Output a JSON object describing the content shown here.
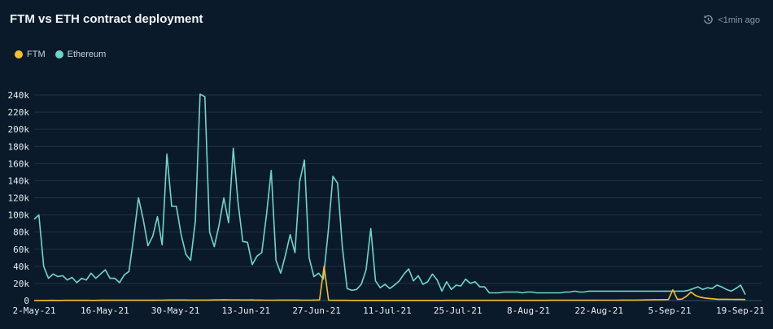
{
  "header": {
    "title": "FTM vs ETH contract deployment",
    "updated": "<1min ago",
    "refresh_icon": "refresh-clock-icon"
  },
  "colors": {
    "background": "#0b1a2a",
    "grid": "#1f3344",
    "ftm": "#f2c12e",
    "ethereum": "#6fd6c9"
  },
  "chart_data": {
    "type": "line",
    "title": "FTM vs ETH contract deployment",
    "legend_position": "top-left",
    "grid": true,
    "ylim": [
      0,
      240000
    ],
    "y_ticks": [
      "0",
      "20k",
      "40k",
      "60k",
      "80k",
      "100k",
      "120k",
      "140k",
      "160k",
      "180k",
      "200k",
      "220k",
      "240k"
    ],
    "x_range": [
      "2021-05-02",
      "2021-09-20"
    ],
    "x_ticks": [
      "2-May-21",
      "16-May-21",
      "30-May-21",
      "13-Jun-21",
      "27-Jun-21",
      "11-Jul-21",
      "25-Jul-21",
      "8-Aug-21",
      "22-Aug-21",
      "5-Sep-21",
      "19-Sep-21"
    ],
    "series": [
      {
        "name": "FTM",
        "color": "#f2c12e",
        "values": [
          100,
          100,
          200,
          200,
          300,
          200,
          200,
          300,
          300,
          300,
          300,
          300,
          300,
          200,
          300,
          400,
          400,
          400,
          400,
          400,
          400,
          500,
          400,
          400,
          400,
          400,
          400,
          500,
          500,
          600,
          700,
          700,
          700,
          700,
          600,
          600,
          600,
          600,
          600,
          700,
          800,
          800,
          900,
          800,
          800,
          800,
          700,
          700,
          800,
          600,
          600,
          500,
          500,
          500,
          600,
          600,
          600,
          600,
          600,
          500,
          500,
          500,
          600,
          800,
          40000,
          500,
          300,
          300,
          300,
          300,
          200,
          200,
          200,
          200,
          200,
          200,
          200,
          200,
          200,
          200,
          200,
          200,
          200,
          200,
          200,
          200,
          200,
          200,
          200,
          200,
          200,
          300,
          300,
          300,
          300,
          300,
          300,
          300,
          300,
          300,
          300,
          300,
          300,
          300,
          300,
          300,
          300,
          300,
          300,
          300,
          300,
          300,
          300,
          300,
          400,
          400,
          400,
          400,
          400,
          400,
          400,
          400,
          400,
          400,
          400,
          500,
          500,
          500,
          500,
          500,
          600,
          600,
          600,
          600,
          700,
          800,
          900,
          1000,
          1000,
          1100,
          1200,
          12500,
          1500,
          1700,
          5000,
          10000,
          6000,
          4000,
          3000,
          2500,
          2000,
          1500,
          1500,
          1500,
          1400,
          1300,
          1300,
          1200
        ]
      },
      {
        "name": "Ethereum",
        "color": "#6fd6c9",
        "values": [
          95000,
          100000,
          40000,
          26000,
          31000,
          28000,
          29000,
          24000,
          27000,
          21000,
          26000,
          24000,
          32000,
          26000,
          31000,
          36000,
          26000,
          26000,
          21000,
          30000,
          34000,
          75000,
          120000,
          95000,
          64000,
          75000,
          98000,
          65000,
          171000,
          110000,
          110000,
          77000,
          54000,
          47000,
          93000,
          241000,
          238000,
          80000,
          63000,
          88000,
          120000,
          91000,
          178000,
          115000,
          69000,
          68000,
          42000,
          52000,
          56000,
          100000,
          152000,
          47000,
          32000,
          53000,
          77000,
          56000,
          139000,
          164000,
          50000,
          28000,
          32000,
          25000,
          80000,
          145000,
          137000,
          63000,
          14000,
          12000,
          13000,
          19000,
          36000,
          84000,
          23000,
          15000,
          19000,
          14000,
          18000,
          23000,
          31000,
          37000,
          23000,
          29000,
          19000,
          22000,
          31000,
          24000,
          11000,
          22000,
          13000,
          18000,
          17000,
          25000,
          20000,
          22000,
          16000,
          16000,
          9000,
          9000,
          9000,
          10000,
          10000,
          10000,
          10000,
          9000,
          10000,
          10000,
          9000,
          9000,
          9000,
          9000,
          9000,
          9000,
          10000,
          10000,
          11000,
          10000,
          10000,
          11000,
          11000,
          11000,
          11000,
          11000,
          11000,
          11000,
          11000,
          11000,
          11000,
          11000,
          11000,
          11000,
          11000,
          11000,
          11000,
          11000,
          11000,
          11000,
          11000,
          11000,
          12000,
          14000,
          16000,
          13000,
          15000,
          14000,
          18000,
          16000,
          13000,
          11000,
          14000,
          18000,
          7000
        ]
      }
    ]
  }
}
